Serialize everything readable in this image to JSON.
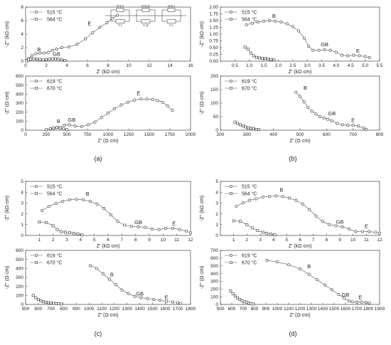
{
  "panel_labels": [
    "(a)",
    "(b)",
    "(c)",
    "(d)"
  ],
  "circuit": {
    "elements": [
      "CPE b",
      "R b",
      "CPE gb",
      "R gb",
      "CPE e",
      "R e"
    ]
  },
  "chart_data": [
    {
      "id": "a-top",
      "type": "scatter",
      "xlabel": "Z' (kΩ·cm)",
      "ylabel": "-Z'' (kΩ·cm)",
      "xlim": [
        0,
        16
      ],
      "ylim": [
        0,
        8
      ],
      "xticks": [
        0,
        2,
        4,
        6,
        8,
        10,
        12,
        14,
        16
      ],
      "yticks": [
        0,
        2,
        4,
        6,
        8
      ],
      "xtick_labels": [
        "0",
        "2",
        "4",
        "6",
        "8",
        "10",
        "12",
        "14",
        "16"
      ],
      "ytick_labels": [
        "0",
        "2",
        "4",
        "6",
        "8"
      ],
      "legend_position": "top-left",
      "series": [
        {
          "name": "515 °C",
          "marker": "circle",
          "x": [
            0.1,
            0.3,
            0.6,
            1.0,
            1.4,
            1.8,
            2.2,
            2.6,
            3.0,
            3.5,
            4.2,
            5.0,
            5.8,
            6.5,
            7.2,
            7.9,
            8.4,
            8.9
          ],
          "y": [
            0.1,
            0.4,
            0.8,
            1.1,
            1.2,
            1.2,
            1.3,
            1.6,
            1.8,
            2.0,
            2.1,
            2.5,
            3.3,
            4.2,
            5.0,
            5.7,
            6.3,
            6.8
          ]
        },
        {
          "name": "564 °C",
          "marker": "square",
          "x": [
            0.1,
            0.3,
            0.5,
            0.8,
            1.1,
            1.4,
            1.7,
            2.0,
            2.3,
            2.6,
            2.9,
            3.2,
            3.5,
            3.8
          ],
          "y": [
            0.05,
            0.2,
            0.3,
            0.35,
            0.3,
            0.25,
            0.2,
            0.25,
            0.3,
            0.35,
            0.35,
            0.3,
            0.2,
            0.1
          ]
        }
      ],
      "annotations": [
        {
          "text": "B",
          "x": 1.3,
          "y": 1.5
        },
        {
          "text": "GB",
          "x": 3.0,
          "y": 0.8
        },
        {
          "text": "E",
          "x": 6.2,
          "y": 5.3
        }
      ]
    },
    {
      "id": "a-bottom",
      "type": "scatter",
      "xlabel": "Z' (Ω·cm)",
      "ylabel": "-Z'' (Ω·cm)",
      "xlim": [
        0,
        2000
      ],
      "ylim": [
        0,
        600
      ],
      "xticks": [
        0,
        250,
        500,
        750,
        1000,
        1250,
        1500,
        1750,
        2000
      ],
      "yticks": [
        0,
        100,
        200,
        300,
        400,
        500,
        600
      ],
      "xtick_labels": [
        "0",
        "250",
        "500",
        "750",
        "1000",
        "1250",
        "1500",
        "1750",
        "2000"
      ],
      "ytick_labels": [
        "0",
        "100",
        "200",
        "300",
        "400",
        "500",
        "600"
      ],
      "legend_position": "top-left",
      "series": [
        {
          "name": "619 °C",
          "marker": "circle",
          "x": [
            330,
            400,
            470,
            530,
            600,
            680,
            760,
            840,
            920,
            1000,
            1080,
            1160,
            1240,
            1320,
            1400,
            1470,
            1540,
            1600,
            1660,
            1720,
            1780
          ],
          "y": [
            10,
            30,
            55,
            60,
            45,
            40,
            60,
            90,
            140,
            190,
            240,
            280,
            310,
            335,
            345,
            345,
            340,
            330,
            310,
            270,
            220
          ]
        },
        {
          "name": "670 °C",
          "marker": "square",
          "x": [
            250,
            300,
            340,
            380,
            420,
            460,
            500
          ],
          "y": [
            5,
            15,
            25,
            30,
            25,
            15,
            5
          ]
        }
      ],
      "annotations": [
        {
          "text": "B",
          "x": 400,
          "y": 80
        },
        {
          "text": "GB",
          "x": 560,
          "y": 95
        },
        {
          "text": "E",
          "x": 1370,
          "y": 390
        }
      ]
    },
    {
      "id": "b-top",
      "type": "scatter",
      "xlabel": "Z' (kΩ·cm)",
      "ylabel": "-Z'' (kΩ·cm)",
      "xlim": [
        0,
        5.5
      ],
      "ylim": [
        0,
        2
      ],
      "xticks": [
        0.5,
        1.0,
        1.5,
        2.0,
        2.5,
        3.0,
        3.5,
        4.0,
        4.5,
        5.0,
        5.5
      ],
      "yticks": [
        0,
        0.25,
        0.5,
        0.75,
        1.0,
        1.25,
        1.5,
        1.75,
        2.0
      ],
      "xtick_labels": [
        "0.5",
        "1.0",
        "1.5",
        "2.0",
        "2.5",
        "3.0",
        "3.5",
        "4.0",
        "4.5",
        "5.0",
        "5.5"
      ],
      "ytick_labels": [
        "0.00",
        "0.25",
        "0.50",
        "0.75",
        "1.00",
        "1.25",
        "1.50",
        "1.75",
        "2.00"
      ],
      "legend_position": "top-left",
      "series": [
        {
          "name": "515 °C",
          "marker": "circle",
          "x": [
            0.9,
            1.1,
            1.3,
            1.5,
            1.7,
            1.9,
            2.1,
            2.3,
            2.5,
            2.7,
            2.9,
            3.05,
            3.2,
            3.4,
            3.6,
            3.8,
            4.0,
            4.2,
            4.4,
            4.6,
            4.8,
            5.0,
            5.15
          ],
          "y": [
            1.35,
            1.4,
            1.45,
            1.48,
            1.5,
            1.48,
            1.45,
            1.38,
            1.28,
            1.12,
            0.85,
            0.55,
            0.4,
            0.4,
            0.42,
            0.4,
            0.33,
            0.22,
            0.2,
            0.22,
            0.2,
            0.17,
            0.13
          ]
        },
        {
          "name": "564 °C",
          "marker": "square",
          "x": [
            0.85,
            0.95,
            1.05,
            1.15,
            1.25,
            1.35,
            1.45,
            1.55,
            1.65,
            1.75,
            1.85
          ],
          "y": [
            0.52,
            0.45,
            0.3,
            0.2,
            0.14,
            0.12,
            0.1,
            0.1,
            0.08,
            0.06,
            0.05
          ]
        }
      ],
      "annotations": [
        {
          "text": "B",
          "x": 1.85,
          "y": 1.6
        },
        {
          "text": "GB",
          "x": 3.6,
          "y": 0.55
        },
        {
          "text": "E",
          "x": 4.75,
          "y": 0.32
        }
      ]
    },
    {
      "id": "b-bottom",
      "type": "scatter",
      "xlabel": "Z' (Ω·cm)",
      "ylabel": "-Z'' (Ω·cm)",
      "xlim": [
        200,
        800
      ],
      "ylim": [
        0,
        200
      ],
      "xticks": [
        200,
        300,
        400,
        500,
        600,
        700,
        800
      ],
      "yticks": [
        0,
        50,
        100,
        150,
        200
      ],
      "xtick_labels": [
        "200",
        "300",
        "400",
        "500",
        "600",
        "700",
        "800"
      ],
      "ytick_labels": [
        "0",
        "50",
        "100",
        "150",
        "200"
      ],
      "legend_position": "top-left",
      "series": [
        {
          "name": "619 °C",
          "marker": "circle",
          "x": [
            485,
            500,
            515,
            530,
            545,
            560,
            575,
            590,
            605,
            620,
            640,
            660,
            680,
            700,
            720,
            740,
            750
          ],
          "y": [
            140,
            125,
            105,
            85,
            70,
            60,
            50,
            45,
            40,
            35,
            25,
            20,
            18,
            18,
            15,
            8,
            3
          ]
        },
        {
          "name": "670 °C",
          "marker": "square",
          "x": [
            255,
            265,
            275,
            285,
            295,
            305,
            315,
            325,
            335,
            345
          ],
          "y": [
            30,
            25,
            20,
            16,
            12,
            9,
            7,
            5,
            3,
            2
          ]
        }
      ],
      "annotations": [
        {
          "text": "B",
          "x": 520,
          "y": 150
        },
        {
          "text": "GB",
          "x": 620,
          "y": 55
        },
        {
          "text": "E",
          "x": 700,
          "y": 30
        }
      ]
    },
    {
      "id": "c-top",
      "type": "scatter",
      "xlabel": "Z' (kΩ·cm)",
      "ylabel": "-Z'' (kΩ·cm)",
      "xlim": [
        0,
        12
      ],
      "ylim": [
        0,
        5
      ],
      "xticks": [
        1,
        2,
        3,
        4,
        5,
        6,
        7,
        8,
        9,
        10,
        11,
        12
      ],
      "yticks": [
        0,
        1,
        2,
        3,
        4,
        5
      ],
      "xtick_labels": [
        "1",
        "2",
        "3",
        "4",
        "5",
        "6",
        "7",
        "8",
        "9",
        "10",
        "11",
        "12"
      ],
      "ytick_labels": [
        "0",
        "1",
        "2",
        "3",
        "4",
        "5"
      ],
      "legend_position": "top-left",
      "series": [
        {
          "name": "515 °C",
          "marker": "circle",
          "x": [
            1.2,
            1.7,
            2.2,
            2.7,
            3.2,
            3.7,
            4.2,
            4.7,
            5.2,
            5.7,
            6.2,
            6.7,
            7.2,
            7.7,
            8.2,
            8.7,
            9.2,
            9.7,
            10.2,
            10.7,
            11.2,
            11.7,
            12.0
          ],
          "y": [
            2.3,
            2.7,
            2.95,
            3.15,
            3.3,
            3.35,
            3.3,
            3.15,
            2.9,
            2.5,
            1.9,
            1.3,
            0.95,
            0.85,
            0.8,
            0.75,
            0.6,
            0.55,
            0.65,
            0.65,
            0.55,
            0.4,
            0.25
          ]
        },
        {
          "name": "564 °C",
          "marker": "square",
          "x": [
            1.0,
            1.5,
            2.0,
            2.3,
            2.6,
            2.9,
            3.2,
            3.5,
            3.8,
            4.1
          ],
          "y": [
            1.25,
            1.2,
            0.9,
            0.55,
            0.35,
            0.3,
            0.25,
            0.2,
            0.15,
            0.05
          ]
        }
      ],
      "annotations": [
        {
          "text": "B",
          "x": 4.5,
          "y": 3.7
        },
        {
          "text": "GB",
          "x": 8.2,
          "y": 1.05
        },
        {
          "text": "E",
          "x": 10.8,
          "y": 0.95
        }
      ]
    },
    {
      "id": "c-bottom",
      "type": "scatter",
      "xlabel": "Z' (Ω·cm)",
      "ylabel": "-Z'' (Ω·cm)",
      "xlim": [
        500,
        1800
      ],
      "ylim": [
        0,
        600
      ],
      "xticks": [
        500,
        600,
        700,
        800,
        900,
        1000,
        1100,
        1200,
        1300,
        1400,
        1500,
        1600,
        1700,
        1800
      ],
      "yticks": [
        0,
        100,
        200,
        300,
        400,
        500,
        600
      ],
      "xtick_labels": [
        "500",
        "600",
        "700",
        "800",
        "900",
        "1000",
        "1100",
        "1200",
        "1300",
        "1400",
        "1500",
        "1600",
        "1700",
        "1800"
      ],
      "ytick_labels": [
        "0",
        "100",
        "200",
        "300",
        "400",
        "500",
        "600"
      ],
      "legend_position": "top-left",
      "series": [
        {
          "name": "619 °C",
          "marker": "circle",
          "x": [
            1010,
            1060,
            1110,
            1160,
            1210,
            1260,
            1310,
            1360,
            1410,
            1460,
            1510,
            1560,
            1610,
            1660,
            1700,
            1720
          ],
          "y": [
            430,
            400,
            340,
            280,
            220,
            160,
            120,
            90,
            75,
            65,
            55,
            45,
            35,
            28,
            20,
            10
          ]
        },
        {
          "name": "670 °C",
          "marker": "square",
          "x": [
            560,
            580,
            600,
            620,
            640,
            660,
            680,
            700,
            720,
            740,
            760,
            780
          ],
          "y": [
            100,
            75,
            55,
            40,
            30,
            25,
            20,
            15,
            12,
            10,
            8,
            5
          ]
        }
      ],
      "annotations": [
        {
          "text": "B",
          "x": 1180,
          "y": 310
        },
        {
          "text": "GB",
          "x": 1400,
          "y": 100
        },
        {
          "text": "E",
          "x": 1610,
          "y": 60
        }
      ]
    },
    {
      "id": "d-top",
      "type": "scatter",
      "xlabel": "Z' (kΩ·cm)",
      "ylabel": "-Z'' (kΩ·cm)",
      "xlim": [
        0,
        12
      ],
      "ylim": [
        0,
        5
      ],
      "xticks": [
        1,
        2,
        3,
        4,
        5,
        6,
        7,
        8,
        9,
        10,
        11,
        12
      ],
      "yticks": [
        0,
        1,
        2,
        3,
        4,
        5
      ],
      "xtick_labels": [
        "1",
        "2",
        "3",
        "4",
        "5",
        "6",
        "7",
        "8",
        "9",
        "10",
        "11",
        "12"
      ],
      "ytick_labels": [
        "0",
        "1",
        "2",
        "3",
        "4",
        "5"
      ],
      "legend_position": "top-left",
      "series": [
        {
          "name": "515 °C",
          "marker": "circle",
          "x": [
            1.2,
            1.7,
            2.2,
            2.7,
            3.2,
            3.7,
            4.2,
            4.7,
            5.2,
            5.7,
            6.2,
            6.7,
            7.2,
            7.7,
            8.2,
            8.7,
            9.2,
            9.7,
            10.2,
            10.7,
            11.2,
            11.7,
            12.0
          ],
          "y": [
            2.7,
            3.0,
            3.25,
            3.4,
            3.55,
            3.6,
            3.65,
            3.6,
            3.45,
            3.25,
            2.9,
            2.4,
            1.8,
            1.3,
            1.0,
            0.9,
            0.8,
            0.6,
            0.35,
            0.35,
            0.35,
            0.3,
            0.2
          ]
        },
        {
          "name": "564 °C",
          "marker": "square",
          "x": [
            1.0,
            1.5,
            2.0,
            2.4,
            2.8,
            3.2,
            3.5,
            3.8,
            4.1
          ],
          "y": [
            1.35,
            1.3,
            1.0,
            0.7,
            0.45,
            0.3,
            0.2,
            0.12,
            0.05
          ]
        }
      ],
      "annotations": [
        {
          "text": "B",
          "x": 4.6,
          "y": 4.05
        },
        {
          "text": "GB",
          "x": 9.0,
          "y": 1.1
        },
        {
          "text": "E",
          "x": 11.0,
          "y": 0.7
        }
      ]
    },
    {
      "id": "d-bottom",
      "type": "scatter",
      "xlabel": "Z' (Ω·cm)",
      "ylabel": "-Z'' (Ω·cm)",
      "xlim": [
        500,
        1900
      ],
      "ylim": [
        0,
        700
      ],
      "xticks": [
        500,
        600,
        700,
        800,
        900,
        1000,
        1100,
        1200,
        1300,
        1400,
        1500,
        1600,
        1700,
        1800,
        1900
      ],
      "yticks": [
        0,
        100,
        200,
        300,
        400,
        500,
        600,
        700
      ],
      "xtick_labels": [
        "500",
        "600",
        "700",
        "800",
        "900",
        "1000",
        "1100",
        "1200",
        "1300",
        "1400",
        "1500",
        "1600",
        "1700",
        "1800",
        "1900"
      ],
      "ytick_labels": [
        "0",
        "100",
        "200",
        "300",
        "400",
        "500",
        "600",
        "700"
      ],
      "legend_position": "top-left",
      "series": [
        {
          "name": "619 °C",
          "marker": "circle",
          "x": [
            910,
            1000,
            1100,
            1200,
            1280,
            1350,
            1420,
            1480,
            1540,
            1590,
            1630,
            1660,
            1700,
            1740,
            1780,
            1810
          ],
          "y": [
            570,
            550,
            515,
            460,
            390,
            320,
            250,
            190,
            130,
            80,
            45,
            35,
            30,
            30,
            25,
            20
          ]
        },
        {
          "name": "670 °C",
          "marker": "square",
          "x": [
            590,
            610,
            630,
            650,
            670,
            690,
            710,
            730,
            750,
            770,
            790
          ],
          "y": [
            175,
            140,
            110,
            85,
            65,
            50,
            40,
            30,
            20,
            12,
            5
          ]
        }
      ],
      "annotations": [
        {
          "text": "B",
          "x": 1280,
          "y": 470
        },
        {
          "text": "GB",
          "x": 1600,
          "y": 100
        },
        {
          "text": "E",
          "x": 1730,
          "y": 70
        }
      ]
    }
  ]
}
